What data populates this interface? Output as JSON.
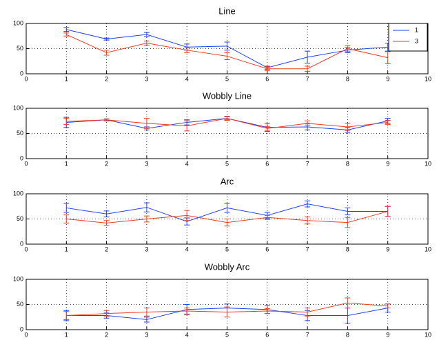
{
  "chart_data": [
    {
      "type": "line",
      "title": "Line",
      "x": [
        1,
        2,
        3,
        4,
        5,
        6,
        7,
        8,
        9
      ],
      "xlim": [
        0,
        10
      ],
      "xticks": [
        0,
        1,
        2,
        3,
        4,
        5,
        6,
        7,
        8,
        9,
        10
      ],
      "ylim": [
        0,
        100
      ],
      "yticks": [
        0,
        50,
        100
      ],
      "grid": true,
      "legend": "upper right",
      "series": [
        {
          "name": "1",
          "color": "#1f3ff0",
          "values": [
            88,
            69,
            78,
            53,
            55,
            12,
            33,
            47,
            53
          ],
          "errors": [
            4,
            2,
            4,
            6,
            8,
            3,
            12,
            5,
            8
          ]
        },
        {
          "name": "3",
          "color": "#f03a1f",
          "values": [
            78,
            42,
            61,
            47,
            35,
            10,
            10,
            50,
            32
          ],
          "errors": [
            3,
            5,
            4,
            5,
            7,
            4,
            5,
            6,
            12
          ]
        }
      ]
    },
    {
      "type": "line",
      "title": "Wobbly Line",
      "x": [
        1,
        2,
        3,
        4,
        5,
        6,
        7,
        8,
        9
      ],
      "xlim": [
        0,
        10
      ],
      "xticks": [
        0,
        1,
        2,
        3,
        4,
        5,
        6,
        7,
        8,
        9,
        10
      ],
      "ylim": [
        0,
        100
      ],
      "yticks": [
        0,
        50,
        100
      ],
      "grid": true,
      "series": [
        {
          "color": "#1f3ff0",
          "values": [
            72,
            77,
            60,
            72,
            80,
            62,
            63,
            57,
            75
          ],
          "errors": [
            10,
            2,
            3,
            5,
            3,
            8,
            6,
            5,
            5
          ]
        },
        {
          "color": "#f03a1f",
          "values": [
            74,
            77,
            70,
            65,
            80,
            60,
            70,
            63,
            72
          ],
          "errors": [
            6,
            2,
            10,
            10,
            4,
            4,
            5,
            7,
            4
          ]
        }
      ]
    },
    {
      "type": "line",
      "title": "Arc",
      "x": [
        1,
        2,
        3,
        4,
        5,
        6,
        7,
        8,
        9
      ],
      "xlim": [
        0,
        10
      ],
      "xticks": [
        0,
        1,
        2,
        3,
        4,
        5,
        6,
        7,
        8,
        9,
        10
      ],
      "ylim": [
        0,
        100
      ],
      "yticks": [
        0,
        50,
        100
      ],
      "grid": true,
      "series": [
        {
          "color": "#1f3ff0",
          "values": [
            72,
            60,
            73,
            45,
            72,
            57,
            80,
            65,
            65
          ],
          "errors": [
            9,
            6,
            9,
            7,
            9,
            6,
            6,
            7,
            10
          ]
        },
        {
          "color": "#f03a1f",
          "values": [
            50,
            42,
            50,
            57,
            43,
            53,
            47,
            43,
            65
          ],
          "errors": [
            8,
            5,
            6,
            10,
            7,
            4,
            7,
            10,
            10
          ]
        }
      ]
    },
    {
      "type": "line",
      "title": "Wobbly Arc",
      "x": [
        1,
        2,
        3,
        4,
        5,
        6,
        7,
        8,
        9
      ],
      "xlim": [
        0,
        10
      ],
      "xticks": [
        0,
        1,
        2,
        3,
        4,
        5,
        6,
        7,
        8,
        9,
        10
      ],
      "ylim": [
        0,
        100
      ],
      "yticks": [
        0,
        50,
        100
      ],
      "grid": true,
      "series": [
        {
          "color": "#1f3ff0",
          "values": [
            28,
            28,
            20,
            40,
            43,
            40,
            28,
            28,
            43
          ],
          "errors": [
            10,
            5,
            5,
            10,
            8,
            8,
            10,
            15,
            8
          ]
        },
        {
          "color": "#f03a1f",
          "values": [
            28,
            32,
            35,
            37,
            35,
            37,
            35,
            53,
            47
          ],
          "errors": [
            8,
            6,
            8,
            6,
            10,
            5,
            8,
            10,
            4
          ]
        }
      ]
    }
  ]
}
